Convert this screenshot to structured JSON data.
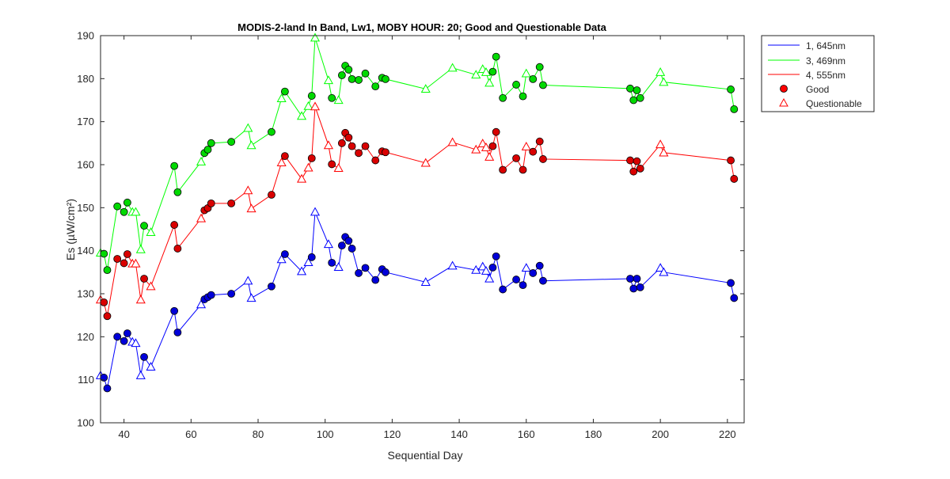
{
  "chart_data": {
    "type": "line",
    "title": "MODIS-2-land In Band,  Lw1, MOBY HOUR: 20;  Good and Questionable Data",
    "xlabel": "Sequential Day",
    "ylabel": "Es (µW/cm²)",
    "xlim": [
      33,
      225
    ],
    "ylim": [
      100,
      190
    ],
    "xticks": [
      40,
      60,
      80,
      100,
      120,
      140,
      160,
      180,
      200,
      220
    ],
    "yticks": [
      100,
      110,
      120,
      130,
      140,
      150,
      160,
      170,
      180,
      190
    ],
    "grid": false,
    "legend_position": "outside-top-right",
    "legend": [
      "1, 645nm",
      "3, 469nm",
      "4, 555nm",
      "Good",
      "Questionable"
    ],
    "marker_colors": {
      "good_fill": "#ff0000",
      "questionable_edge": "#ff0000",
      "marker_edge": "#000000"
    },
    "series": [
      {
        "name": "1, 645nm",
        "color": "#0000ff",
        "fill": "#0000d9",
        "points": [
          {
            "x": 33,
            "y": 111,
            "q": 1
          },
          {
            "x": 34,
            "y": 110.5,
            "q": 0
          },
          {
            "x": 35,
            "y": 108,
            "q": 0
          },
          {
            "x": 38,
            "y": 120,
            "q": 0
          },
          {
            "x": 40,
            "y": 119,
            "q": 0
          },
          {
            "x": 41,
            "y": 120.8,
            "q": 0
          },
          {
            "x": 42.5,
            "y": 118.8,
            "q": 1
          },
          {
            "x": 43.5,
            "y": 118.5,
            "q": 1
          },
          {
            "x": 45,
            "y": 111,
            "q": 1
          },
          {
            "x": 46,
            "y": 115.3,
            "q": 0
          },
          {
            "x": 48,
            "y": 113,
            "q": 1
          },
          {
            "x": 55,
            "y": 126,
            "q": 0
          },
          {
            "x": 56,
            "y": 121,
            "q": 0
          },
          {
            "x": 63,
            "y": 127.5,
            "q": 1
          },
          {
            "x": 64,
            "y": 128.7,
            "q": 0
          },
          {
            "x": 65,
            "y": 129.2,
            "q": 0
          },
          {
            "x": 66,
            "y": 129.7,
            "q": 0
          },
          {
            "x": 72,
            "y": 130,
            "q": 0
          },
          {
            "x": 77,
            "y": 133,
            "q": 1
          },
          {
            "x": 78,
            "y": 129,
            "q": 1
          },
          {
            "x": 84,
            "y": 131.7,
            "q": 0
          },
          {
            "x": 87,
            "y": 138,
            "q": 1
          },
          {
            "x": 88,
            "y": 139.2,
            "q": 0
          },
          {
            "x": 93,
            "y": 135.2,
            "q": 1
          },
          {
            "x": 95,
            "y": 137.3,
            "q": 1
          },
          {
            "x": 96,
            "y": 138.5,
            "q": 0
          },
          {
            "x": 97,
            "y": 149,
            "q": 1
          },
          {
            "x": 101,
            "y": 141.5,
            "q": 1
          },
          {
            "x": 102,
            "y": 137.2,
            "q": 0
          },
          {
            "x": 104,
            "y": 136.2,
            "q": 1
          },
          {
            "x": 105,
            "y": 141.2,
            "q": 0
          },
          {
            "x": 106,
            "y": 143.2,
            "q": 0
          },
          {
            "x": 107,
            "y": 142.3,
            "q": 0
          },
          {
            "x": 108,
            "y": 140.5,
            "q": 0
          },
          {
            "x": 110,
            "y": 134.8,
            "q": 0
          },
          {
            "x": 112,
            "y": 136,
            "q": 0
          },
          {
            "x": 115,
            "y": 133.2,
            "q": 0
          },
          {
            "x": 117,
            "y": 135.7,
            "q": 0
          },
          {
            "x": 118,
            "y": 135,
            "q": 0
          },
          {
            "x": 130,
            "y": 132.7,
            "q": 1
          },
          {
            "x": 138,
            "y": 136.5,
            "q": 1
          },
          {
            "x": 145,
            "y": 135.5,
            "q": 1
          },
          {
            "x": 147,
            "y": 136.3,
            "q": 1
          },
          {
            "x": 148,
            "y": 135.3,
            "q": 1
          },
          {
            "x": 149,
            "y": 133.5,
            "q": 1
          },
          {
            "x": 150,
            "y": 136.1,
            "q": 0
          },
          {
            "x": 151,
            "y": 138.7,
            "q": 0
          },
          {
            "x": 153,
            "y": 131,
            "q": 0
          },
          {
            "x": 157,
            "y": 133.3,
            "q": 0
          },
          {
            "x": 159,
            "y": 132,
            "q": 0
          },
          {
            "x": 160,
            "y": 136,
            "q": 1
          },
          {
            "x": 162,
            "y": 134.8,
            "q": 0
          },
          {
            "x": 164,
            "y": 136.5,
            "q": 0
          },
          {
            "x": 165,
            "y": 133,
            "q": 0
          },
          {
            "x": 191,
            "y": 133.5,
            "q": 0
          },
          {
            "x": 192,
            "y": 131.2,
            "q": 0
          },
          {
            "x": 193,
            "y": 133.5,
            "q": 0
          },
          {
            "x": 194,
            "y": 131.5,
            "q": 0
          },
          {
            "x": 200,
            "y": 136,
            "q": 1
          },
          {
            "x": 201,
            "y": 135,
            "q": 1
          },
          {
            "x": 221,
            "y": 132.5,
            "q": 0
          },
          {
            "x": 222,
            "y": 129,
            "q": 0
          }
        ]
      },
      {
        "name": "3, 469nm",
        "color": "#00ff00",
        "fill": "#00d900",
        "points": [
          {
            "x": 33,
            "y": 139.5,
            "q": 1
          },
          {
            "x": 34,
            "y": 139.3,
            "q": 0
          },
          {
            "x": 35,
            "y": 135.5,
            "q": 0
          },
          {
            "x": 38,
            "y": 150.3,
            "q": 0
          },
          {
            "x": 40,
            "y": 149,
            "q": 0
          },
          {
            "x": 41,
            "y": 151.2,
            "q": 0
          },
          {
            "x": 42.5,
            "y": 149,
            "q": 1
          },
          {
            "x": 43.5,
            "y": 149,
            "q": 1
          },
          {
            "x": 45,
            "y": 140.3,
            "q": 1
          },
          {
            "x": 46,
            "y": 145.8,
            "q": 0
          },
          {
            "x": 48,
            "y": 144.3,
            "q": 1
          },
          {
            "x": 55,
            "y": 159.7,
            "q": 0
          },
          {
            "x": 56,
            "y": 153.6,
            "q": 0
          },
          {
            "x": 63,
            "y": 160.7,
            "q": 1
          },
          {
            "x": 64,
            "y": 162.7,
            "q": 0
          },
          {
            "x": 65,
            "y": 163.5,
            "q": 0
          },
          {
            "x": 66,
            "y": 165,
            "q": 0
          },
          {
            "x": 72,
            "y": 165.3,
            "q": 0
          },
          {
            "x": 77,
            "y": 168.5,
            "q": 1
          },
          {
            "x": 78,
            "y": 164.5,
            "q": 1
          },
          {
            "x": 84,
            "y": 167.6,
            "q": 0
          },
          {
            "x": 87,
            "y": 175.4,
            "q": 1
          },
          {
            "x": 88,
            "y": 177,
            "q": 0
          },
          {
            "x": 93,
            "y": 171.3,
            "q": 1
          },
          {
            "x": 95,
            "y": 173.6,
            "q": 1
          },
          {
            "x": 96,
            "y": 176,
            "q": 0
          },
          {
            "x": 97,
            "y": 189.5,
            "q": 1
          },
          {
            "x": 101,
            "y": 179.6,
            "q": 1
          },
          {
            "x": 102,
            "y": 175.5,
            "q": 0
          },
          {
            "x": 104,
            "y": 175,
            "q": 1
          },
          {
            "x": 105,
            "y": 180.8,
            "q": 0
          },
          {
            "x": 106,
            "y": 183,
            "q": 0
          },
          {
            "x": 107,
            "y": 182.1,
            "q": 0
          },
          {
            "x": 108,
            "y": 179.9,
            "q": 0
          },
          {
            "x": 110,
            "y": 179.7,
            "q": 0
          },
          {
            "x": 112,
            "y": 181.2,
            "q": 0
          },
          {
            "x": 115,
            "y": 178.2,
            "q": 0
          },
          {
            "x": 117,
            "y": 180.2,
            "q": 0
          },
          {
            "x": 118,
            "y": 179.9,
            "q": 0
          },
          {
            "x": 130,
            "y": 177.6,
            "q": 1
          },
          {
            "x": 138,
            "y": 182.5,
            "q": 1
          },
          {
            "x": 145,
            "y": 180.9,
            "q": 1
          },
          {
            "x": 147,
            "y": 182.2,
            "q": 1
          },
          {
            "x": 148,
            "y": 181.5,
            "q": 1
          },
          {
            "x": 149,
            "y": 179,
            "q": 1
          },
          {
            "x": 150,
            "y": 181.6,
            "q": 0
          },
          {
            "x": 151,
            "y": 185.1,
            "q": 0
          },
          {
            "x": 153,
            "y": 175.5,
            "q": 0
          },
          {
            "x": 157,
            "y": 178.6,
            "q": 0
          },
          {
            "x": 159,
            "y": 175.9,
            "q": 0
          },
          {
            "x": 160,
            "y": 181.2,
            "q": 1
          },
          {
            "x": 162,
            "y": 179.9,
            "q": 0
          },
          {
            "x": 164,
            "y": 182.7,
            "q": 0
          },
          {
            "x": 165,
            "y": 178.5,
            "q": 0
          },
          {
            "x": 191,
            "y": 177.7,
            "q": 0
          },
          {
            "x": 192,
            "y": 175,
            "q": 0
          },
          {
            "x": 193,
            "y": 177.3,
            "q": 0
          },
          {
            "x": 194,
            "y": 175.5,
            "q": 0
          },
          {
            "x": 200,
            "y": 181.5,
            "q": 1
          },
          {
            "x": 201,
            "y": 179.2,
            "q": 1
          },
          {
            "x": 221,
            "y": 177.5,
            "q": 0
          },
          {
            "x": 222,
            "y": 172.9,
            "q": 0
          }
        ]
      },
      {
        "name": "4, 555nm",
        "color": "#ff0000",
        "fill": "#d90000",
        "points": [
          {
            "x": 33,
            "y": 128.6,
            "q": 1
          },
          {
            "x": 34,
            "y": 128,
            "q": 0
          },
          {
            "x": 35,
            "y": 124.8,
            "q": 0
          },
          {
            "x": 38,
            "y": 138.1,
            "q": 0
          },
          {
            "x": 40,
            "y": 137.1,
            "q": 0
          },
          {
            "x": 41,
            "y": 139.2,
            "q": 0
          },
          {
            "x": 42.5,
            "y": 137,
            "q": 1
          },
          {
            "x": 43.5,
            "y": 137,
            "q": 1
          },
          {
            "x": 45,
            "y": 128.6,
            "q": 1
          },
          {
            "x": 46,
            "y": 133.5,
            "q": 0
          },
          {
            "x": 48,
            "y": 131.7,
            "q": 1
          },
          {
            "x": 55,
            "y": 146,
            "q": 0
          },
          {
            "x": 56,
            "y": 140.5,
            "q": 0
          },
          {
            "x": 63,
            "y": 147.5,
            "q": 1
          },
          {
            "x": 64,
            "y": 149.4,
            "q": 0
          },
          {
            "x": 65,
            "y": 149.9,
            "q": 0
          },
          {
            "x": 66,
            "y": 151,
            "q": 0
          },
          {
            "x": 72,
            "y": 151,
            "q": 0
          },
          {
            "x": 77,
            "y": 154,
            "q": 1
          },
          {
            "x": 78,
            "y": 149.8,
            "q": 1
          },
          {
            "x": 84,
            "y": 153,
            "q": 0
          },
          {
            "x": 87,
            "y": 160.5,
            "q": 1
          },
          {
            "x": 88,
            "y": 162,
            "q": 0
          },
          {
            "x": 93,
            "y": 156.7,
            "q": 1
          },
          {
            "x": 95,
            "y": 159.3,
            "q": 1
          },
          {
            "x": 96,
            "y": 161.5,
            "q": 0
          },
          {
            "x": 97,
            "y": 173.5,
            "q": 1
          },
          {
            "x": 101,
            "y": 164.5,
            "q": 1
          },
          {
            "x": 102,
            "y": 160.1,
            "q": 0
          },
          {
            "x": 104,
            "y": 159.2,
            "q": 1
          },
          {
            "x": 105,
            "y": 165,
            "q": 0
          },
          {
            "x": 106,
            "y": 167.4,
            "q": 0
          },
          {
            "x": 107,
            "y": 166.3,
            "q": 0
          },
          {
            "x": 108,
            "y": 164.3,
            "q": 0
          },
          {
            "x": 110,
            "y": 162.7,
            "q": 0
          },
          {
            "x": 112,
            "y": 164.3,
            "q": 0
          },
          {
            "x": 115,
            "y": 161,
            "q": 0
          },
          {
            "x": 117,
            "y": 163.1,
            "q": 0
          },
          {
            "x": 118,
            "y": 162.9,
            "q": 0
          },
          {
            "x": 130,
            "y": 160.4,
            "q": 1
          },
          {
            "x": 138,
            "y": 165.2,
            "q": 1
          },
          {
            "x": 145,
            "y": 163.5,
            "q": 1
          },
          {
            "x": 147,
            "y": 164.9,
            "q": 1
          },
          {
            "x": 148,
            "y": 164,
            "q": 1
          },
          {
            "x": 149,
            "y": 161.8,
            "q": 1
          },
          {
            "x": 150,
            "y": 164.3,
            "q": 0
          },
          {
            "x": 151,
            "y": 167.6,
            "q": 0
          },
          {
            "x": 153,
            "y": 158.8,
            "q": 0
          },
          {
            "x": 157,
            "y": 161.5,
            "q": 0
          },
          {
            "x": 159,
            "y": 158.8,
            "q": 0
          },
          {
            "x": 160,
            "y": 164.2,
            "q": 1
          },
          {
            "x": 162,
            "y": 163,
            "q": 0
          },
          {
            "x": 164,
            "y": 165.4,
            "q": 0
          },
          {
            "x": 165,
            "y": 161.3,
            "q": 0
          },
          {
            "x": 191,
            "y": 161,
            "q": 0
          },
          {
            "x": 192,
            "y": 158.4,
            "q": 0
          },
          {
            "x": 193,
            "y": 160.8,
            "q": 0
          },
          {
            "x": 194,
            "y": 159.1,
            "q": 0
          },
          {
            "x": 200,
            "y": 164.7,
            "q": 1
          },
          {
            "x": 201,
            "y": 162.8,
            "q": 1
          },
          {
            "x": 221,
            "y": 161,
            "q": 0
          },
          {
            "x": 222,
            "y": 156.7,
            "q": 0
          }
        ]
      }
    ]
  }
}
